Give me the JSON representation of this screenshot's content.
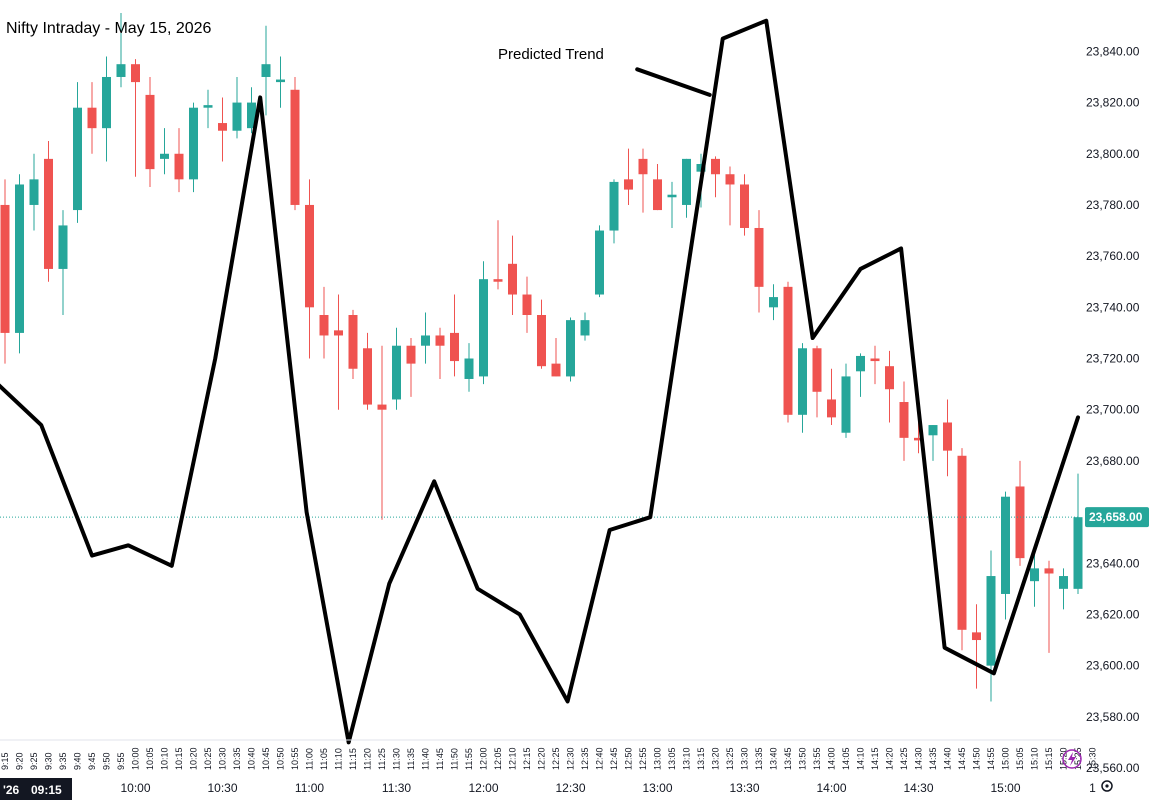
{
  "chart_data": {
    "type": "candlestick",
    "title": "Nifty Intraday - May 15, 2026",
    "annotation": "Predicted Trend",
    "ylim": [
      23560,
      23855
    ],
    "y_ticks": [
      23560,
      23580,
      23600,
      23620,
      23640,
      23660,
      23680,
      23700,
      23720,
      23740,
      23760,
      23780,
      23800,
      23820,
      23840
    ],
    "y_tick_labels": [
      "23,560.00",
      "23,580.00",
      "23,600.00",
      "23,620.00",
      "23,640.00",
      "23,660.00",
      "23,680.00",
      "23,700.00",
      "23,720.00",
      "23,740.00",
      "23,760.00",
      "23,780.00",
      "23,800.00",
      "23,820.00",
      "23,840.00"
    ],
    "x_small_labels": [
      "9:15",
      "9:20",
      "9:25",
      "9:30",
      "9:35",
      "9:40",
      "9:45",
      "9:50",
      "9:55",
      "10:00",
      "10:05",
      "10:10",
      "10:15",
      "10:20",
      "10:25",
      "10:30",
      "10:35",
      "10:40",
      "10:45",
      "10:50",
      "10:55",
      "11:00",
      "11:05",
      "11:10",
      "11:15",
      "11:20",
      "11:25",
      "11:30",
      "11:35",
      "11:40",
      "11:45",
      "11:50",
      "11:55",
      "12:00",
      "12:05",
      "12:10",
      "12:15",
      "12:20",
      "12:25",
      "12:30",
      "12:35",
      "12:40",
      "12:45",
      "12:50",
      "12:55",
      "13:00",
      "13:05",
      "13:10",
      "13:15",
      "13:20",
      "13:25",
      "13:30",
      "13:35",
      "13:40",
      "13:45",
      "13:50",
      "13:55",
      "14:00",
      "14:05",
      "14:10",
      "14:15",
      "14:20",
      "14:25",
      "14:30",
      "14:35",
      "14:40",
      "14:45",
      "14:50",
      "14:55",
      "15:00",
      "15:05",
      "15:10",
      "15:15",
      "15:20",
      "15:25",
      "15:30"
    ],
    "x_big_labels": [
      {
        "bar": 9,
        "label": "10:00"
      },
      {
        "bar": 15,
        "label": "10:30"
      },
      {
        "bar": 21,
        "label": "11:00"
      },
      {
        "bar": 27,
        "label": "11:30"
      },
      {
        "bar": 33,
        "label": "12:00"
      },
      {
        "bar": 39,
        "label": "12:30"
      },
      {
        "bar": 45,
        "label": "13:00"
      },
      {
        "bar": 51,
        "label": "13:30"
      },
      {
        "bar": 57,
        "label": "14:00"
      },
      {
        "bar": 63,
        "label": "14:30"
      },
      {
        "bar": 69,
        "label": "15:00"
      },
      {
        "bar": 75,
        "label": "1"
      }
    ],
    "corner_label": "'26",
    "corner_time": "09:15",
    "last_price": 23658,
    "last_price_label": "23,658.00",
    "colors": {
      "up": "#26a69a",
      "down": "#ef5350",
      "trend": "#000000",
      "price_line": "#26a69a"
    },
    "candles": [
      {
        "o": 23780,
        "h": 23790,
        "l": 23718,
        "c": 23730
      },
      {
        "o": 23730,
        "h": 23792,
        "l": 23722,
        "c": 23788
      },
      {
        "o": 23780,
        "h": 23800,
        "l": 23770,
        "c": 23790
      },
      {
        "o": 23798,
        "h": 23805,
        "l": 23750,
        "c": 23755
      },
      {
        "o": 23755,
        "h": 23778,
        "l": 23737,
        "c": 23772
      },
      {
        "o": 23778,
        "h": 23828,
        "l": 23773,
        "c": 23818
      },
      {
        "o": 23818,
        "h": 23828,
        "l": 23800,
        "c": 23810
      },
      {
        "o": 23810,
        "h": 23838,
        "l": 23797,
        "c": 23830
      },
      {
        "o": 23830,
        "h": 23855,
        "l": 23826,
        "c": 23835
      },
      {
        "o": 23835,
        "h": 23837,
        "l": 23791,
        "c": 23828
      },
      {
        "o": 23823,
        "h": 23830,
        "l": 23787,
        "c": 23794
      },
      {
        "o": 23798,
        "h": 23810,
        "l": 23792,
        "c": 23800
      },
      {
        "o": 23800,
        "h": 23810,
        "l": 23785,
        "c": 23790
      },
      {
        "o": 23790,
        "h": 23820,
        "l": 23785,
        "c": 23818
      },
      {
        "o": 23818,
        "h": 23825,
        "l": 23810,
        "c": 23819
      },
      {
        "o": 23812,
        "h": 23822,
        "l": 23797,
        "c": 23809
      },
      {
        "o": 23809,
        "h": 23830,
        "l": 23806,
        "c": 23820
      },
      {
        "o": 23810,
        "h": 23826,
        "l": 23808,
        "c": 23820
      },
      {
        "o": 23830,
        "h": 23850,
        "l": 23815,
        "c": 23835
      },
      {
        "o": 23828,
        "h": 23838,
        "l": 23818,
        "c": 23829
      },
      {
        "o": 23825,
        "h": 23830,
        "l": 23778,
        "c": 23780
      },
      {
        "o": 23780,
        "h": 23790,
        "l": 23720,
        "c": 23740
      },
      {
        "o": 23737,
        "h": 23748,
        "l": 23720,
        "c": 23729
      },
      {
        "o": 23731,
        "h": 23745,
        "l": 23700,
        "c": 23729
      },
      {
        "o": 23737,
        "h": 23739,
        "l": 23712,
        "c": 23716
      },
      {
        "o": 23724,
        "h": 23730,
        "l": 23700,
        "c": 23702
      },
      {
        "o": 23702,
        "h": 23725,
        "l": 23657,
        "c": 23700
      },
      {
        "o": 23704,
        "h": 23732,
        "l": 23700,
        "c": 23725
      },
      {
        "o": 23725,
        "h": 23728,
        "l": 23705,
        "c": 23718
      },
      {
        "o": 23725,
        "h": 23738,
        "l": 23718,
        "c": 23729
      },
      {
        "o": 23729,
        "h": 23732,
        "l": 23712,
        "c": 23725
      },
      {
        "o": 23730,
        "h": 23745,
        "l": 23713,
        "c": 23719
      },
      {
        "o": 23712,
        "h": 23726,
        "l": 23707,
        "c": 23720
      },
      {
        "o": 23713,
        "h": 23758,
        "l": 23710,
        "c": 23751
      },
      {
        "o": 23751,
        "h": 23774,
        "l": 23747,
        "c": 23750
      },
      {
        "o": 23757,
        "h": 23768,
        "l": 23737,
        "c": 23745
      },
      {
        "o": 23745,
        "h": 23752,
        "l": 23730,
        "c": 23737
      },
      {
        "o": 23737,
        "h": 23743,
        "l": 23716,
        "c": 23717
      },
      {
        "o": 23718,
        "h": 23728,
        "l": 23713,
        "c": 23713
      },
      {
        "o": 23713,
        "h": 23736,
        "l": 23711,
        "c": 23735
      },
      {
        "o": 23729,
        "h": 23738,
        "l": 23727,
        "c": 23735
      },
      {
        "o": 23745,
        "h": 23772,
        "l": 23744,
        "c": 23770
      },
      {
        "o": 23770,
        "h": 23790,
        "l": 23765,
        "c": 23789
      },
      {
        "o": 23790,
        "h": 23802,
        "l": 23780,
        "c": 23786
      },
      {
        "o": 23798,
        "h": 23802,
        "l": 23777,
        "c": 23792
      },
      {
        "o": 23790,
        "h": 23796,
        "l": 23778,
        "c": 23778
      },
      {
        "o": 23783,
        "h": 23789,
        "l": 23771,
        "c": 23784
      },
      {
        "o": 23780,
        "h": 23798,
        "l": 23775,
        "c": 23798
      },
      {
        "o": 23793,
        "h": 23800,
        "l": 23779,
        "c": 23796
      },
      {
        "o": 23798,
        "h": 23799,
        "l": 23783,
        "c": 23792
      },
      {
        "o": 23792,
        "h": 23795,
        "l": 23772,
        "c": 23788
      },
      {
        "o": 23788,
        "h": 23792,
        "l": 23768,
        "c": 23771
      },
      {
        "o": 23771,
        "h": 23778,
        "l": 23738,
        "c": 23748
      },
      {
        "o": 23740,
        "h": 23749,
        "l": 23735,
        "c": 23744
      },
      {
        "o": 23748,
        "h": 23750,
        "l": 23695,
        "c": 23698
      },
      {
        "o": 23698,
        "h": 23726,
        "l": 23691,
        "c": 23724
      },
      {
        "o": 23724,
        "h": 23725,
        "l": 23697,
        "c": 23707
      },
      {
        "o": 23704,
        "h": 23716,
        "l": 23694,
        "c": 23697
      },
      {
        "o": 23691,
        "h": 23718,
        "l": 23689,
        "c": 23713
      },
      {
        "o": 23715,
        "h": 23722,
        "l": 23705,
        "c": 23721
      },
      {
        "o": 23720,
        "h": 23725,
        "l": 23710,
        "c": 23719
      },
      {
        "o": 23717,
        "h": 23723,
        "l": 23695,
        "c": 23708
      },
      {
        "o": 23703,
        "h": 23711,
        "l": 23680,
        "c": 23689
      },
      {
        "o": 23689,
        "h": 23703,
        "l": 23683,
        "c": 23688
      },
      {
        "o": 23690,
        "h": 23694,
        "l": 23680,
        "c": 23694
      },
      {
        "o": 23695,
        "h": 23704,
        "l": 23674,
        "c": 23684
      },
      {
        "o": 23682,
        "h": 23685,
        "l": 23606,
        "c": 23614
      },
      {
        "o": 23613,
        "h": 23624,
        "l": 23591,
        "c": 23610
      },
      {
        "o": 23600,
        "h": 23645,
        "l": 23586,
        "c": 23635
      },
      {
        "o": 23628,
        "h": 23668,
        "l": 23618,
        "c": 23666
      },
      {
        "o": 23670,
        "h": 23680,
        "l": 23639,
        "c": 23642
      },
      {
        "o": 23633,
        "h": 23646,
        "l": 23623,
        "c": 23638
      },
      {
        "o": 23638,
        "h": 23641,
        "l": 23605,
        "c": 23636
      },
      {
        "o": 23630,
        "h": 23638,
        "l": 23622,
        "c": 23635
      },
      {
        "o": 23630,
        "h": 23675,
        "l": 23628,
        "c": 23658
      }
    ],
    "trend_line": [
      {
        "bar": -0.5,
        "y": 23710
      },
      {
        "bar": 2.5,
        "y": 23694
      },
      {
        "bar": 6.0,
        "y": 23643
      },
      {
        "bar": 8.5,
        "y": 23647
      },
      {
        "bar": 11.5,
        "y": 23639
      },
      {
        "bar": 14.5,
        "y": 23720
      },
      {
        "bar": 17.6,
        "y": 23822
      },
      {
        "bar": 20.8,
        "y": 23660
      },
      {
        "bar": 23.7,
        "y": 23570
      },
      {
        "bar": 26.5,
        "y": 23632
      },
      {
        "bar": 29.6,
        "y": 23672
      },
      {
        "bar": 32.6,
        "y": 23630
      },
      {
        "bar": 35.5,
        "y": 23620
      },
      {
        "bar": 38.8,
        "y": 23586
      },
      {
        "bar": 41.7,
        "y": 23653
      },
      {
        "bar": 44.5,
        "y": 23658
      },
      {
        "bar": 49.5,
        "y": 23845
      },
      {
        "bar": 52.5,
        "y": 23852
      },
      {
        "bar": 55.7,
        "y": 23728
      },
      {
        "bar": 59.0,
        "y": 23755
      },
      {
        "bar": 61.8,
        "y": 23763
      },
      {
        "bar": 64.8,
        "y": 23607
      },
      {
        "bar": 68.2,
        "y": 23597
      },
      {
        "bar": 74.0,
        "y": 23697
      }
    ],
    "annotation_pointer": [
      {
        "bar": 43.6,
        "y": 23833
      },
      {
        "bar": 48.6,
        "y": 23823
      }
    ],
    "grid": false,
    "legend": "none"
  }
}
